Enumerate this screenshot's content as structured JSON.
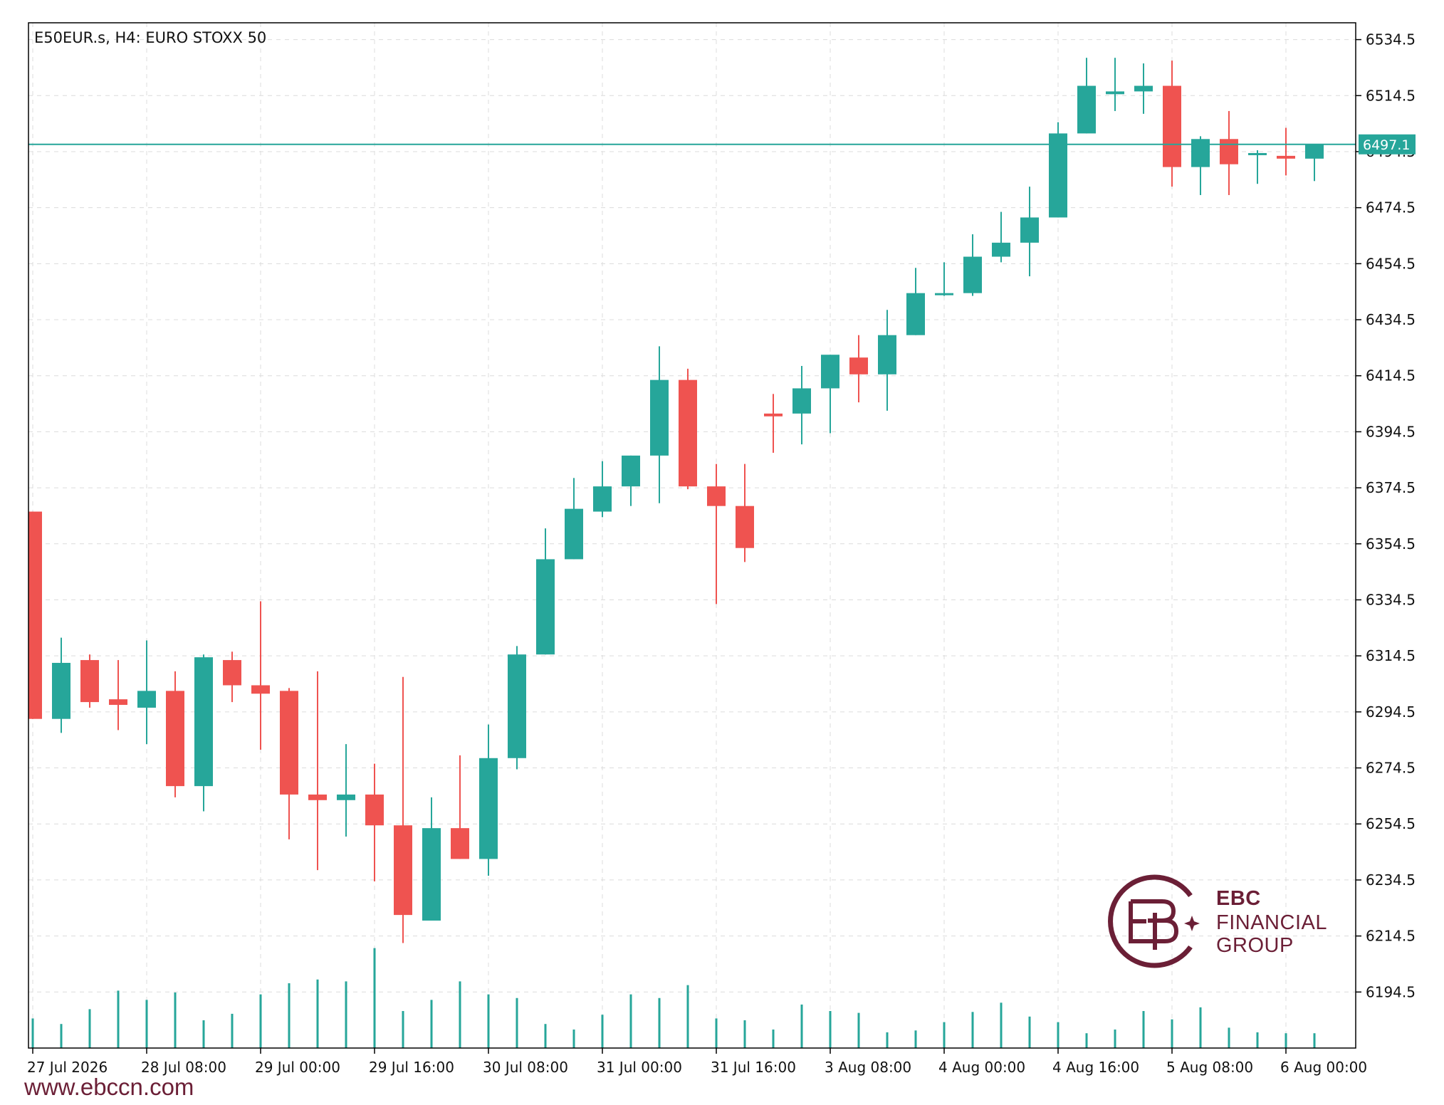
{
  "header": {
    "title": "E50EUR.s, H4:  EURO STOXX 50"
  },
  "price_tag": {
    "value": "6497.1",
    "color": "#26a69a"
  },
  "watermark": {
    "brand": "EBC",
    "line2": "FINANCIAL",
    "line3": "GROUP",
    "color": "#6b1f36"
  },
  "footer": {
    "website": "www.ebccn.com"
  },
  "colors": {
    "bull": "#26a69a",
    "bear": "#ef5350",
    "grid": "#dcdcdc",
    "axis": "#000000",
    "volume": "#26a69a"
  },
  "chart_data": {
    "type": "candlestick",
    "symbol": "E50EUR.s",
    "timeframe": "H4",
    "instrument": "EURO STOXX 50",
    "ylim": [
      6174.5,
      6540.5
    ],
    "y_ticks": [
      6534.5,
      6514.5,
      6494.5,
      6474.5,
      6454.5,
      6434.5,
      6414.5,
      6394.5,
      6374.5,
      6354.5,
      6334.5,
      6314.5,
      6294.5,
      6274.5,
      6254.5,
      6234.5,
      6214.5,
      6194.5
    ],
    "y_tick_labels": [
      "6534.5",
      "6514.5",
      "6494.5",
      "6474.5",
      "6454.5",
      "6434.5",
      "6414.5",
      "6394.5",
      "6374.5",
      "6354.5",
      "6334.5",
      "6314.5",
      "6294.5",
      "6274.5",
      "6254.5",
      "6234.5",
      "6214.5",
      "6194.5"
    ],
    "x_tick_labels": [
      {
        "index": 0,
        "label": "27 Jul 2026"
      },
      {
        "index": 4,
        "label": "28 Jul 08:00"
      },
      {
        "index": 8,
        "label": "29 Jul 00:00"
      },
      {
        "index": 12,
        "label": "29 Jul 16:00"
      },
      {
        "index": 16,
        "label": "30 Jul 08:00"
      },
      {
        "index": 20,
        "label": "31 Jul 00:00"
      },
      {
        "index": 24,
        "label": "31 Jul 16:00"
      },
      {
        "index": 28,
        "label": "3 Aug 08:00"
      },
      {
        "index": 32,
        "label": "4 Aug 00:00"
      },
      {
        "index": 36,
        "label": "4 Aug 16:00"
      },
      {
        "index": 40,
        "label": "5 Aug 08:00"
      },
      {
        "index": 44,
        "label": "6 Aug 00:00"
      }
    ],
    "current_price": 6497.1,
    "candles": [
      {
        "o": 6366,
        "h": 6366,
        "l": 6292,
        "c": 6292
      },
      {
        "o": 6292,
        "h": 6321,
        "l": 6287,
        "c": 6312
      },
      {
        "o": 6313,
        "h": 6315,
        "l": 6296,
        "c": 6298
      },
      {
        "o": 6299,
        "h": 6313,
        "l": 6288,
        "c": 6297
      },
      {
        "o": 6296,
        "h": 6320,
        "l": 6283,
        "c": 6302
      },
      {
        "o": 6302,
        "h": 6309,
        "l": 6264,
        "c": 6268
      },
      {
        "o": 6268,
        "h": 6315,
        "l": 6259,
        "c": 6314
      },
      {
        "o": 6313,
        "h": 6316,
        "l": 6298,
        "c": 6304
      },
      {
        "o": 6304,
        "h": 6334,
        "l": 6281,
        "c": 6301
      },
      {
        "o": 6302,
        "h": 6303,
        "l": 6249,
        "c": 6265
      },
      {
        "o": 6265,
        "h": 6309,
        "l": 6238,
        "c": 6263
      },
      {
        "o": 6263,
        "h": 6283,
        "l": 6250,
        "c": 6265
      },
      {
        "o": 6265,
        "h": 6276,
        "l": 6234,
        "c": 6254
      },
      {
        "o": 6254,
        "h": 6307,
        "l": 6212,
        "c": 6222
      },
      {
        "o": 6220,
        "h": 6264,
        "l": 6220,
        "c": 6253
      },
      {
        "o": 6253,
        "h": 6279,
        "l": 6242,
        "c": 6242
      },
      {
        "o": 6242,
        "h": 6290,
        "l": 6236,
        "c": 6278
      },
      {
        "o": 6278,
        "h": 6318,
        "l": 6274,
        "c": 6315
      },
      {
        "o": 6315,
        "h": 6360,
        "l": 6315,
        "c": 6349
      },
      {
        "o": 6349,
        "h": 6378,
        "l": 6349,
        "c": 6367
      },
      {
        "o": 6366,
        "h": 6384,
        "l": 6364,
        "c": 6375
      },
      {
        "o": 6375,
        "h": 6386,
        "l": 6368,
        "c": 6386
      },
      {
        "o": 6386,
        "h": 6425,
        "l": 6369,
        "c": 6413
      },
      {
        "o": 6413,
        "h": 6417,
        "l": 6374,
        "c": 6375
      },
      {
        "o": 6375,
        "h": 6383,
        "l": 6333,
        "c": 6368
      },
      {
        "o": 6368,
        "h": 6383,
        "l": 6348,
        "c": 6353
      },
      {
        "o": 6401,
        "h": 6408,
        "l": 6387,
        "c": 6400
      },
      {
        "o": 6401,
        "h": 6418,
        "l": 6390,
        "c": 6410
      },
      {
        "o": 6410,
        "h": 6422,
        "l": 6394,
        "c": 6422
      },
      {
        "o": 6421,
        "h": 6429,
        "l": 6405,
        "c": 6415
      },
      {
        "o": 6415,
        "h": 6438,
        "l": 6402,
        "c": 6429
      },
      {
        "o": 6429,
        "h": 6453,
        "l": 6429,
        "c": 6444
      },
      {
        "o": 6444,
        "h": 6455,
        "l": 6443,
        "c": 6444
      },
      {
        "o": 6444,
        "h": 6465,
        "l": 6443,
        "c": 6457
      },
      {
        "o": 6457,
        "h": 6473,
        "l": 6455,
        "c": 6462
      },
      {
        "o": 6462,
        "h": 6482,
        "l": 6450,
        "c": 6471
      },
      {
        "o": 6471,
        "h": 6505,
        "l": 6471,
        "c": 6501
      },
      {
        "o": 6501,
        "h": 6528,
        "l": 6501,
        "c": 6518
      },
      {
        "o": 6515,
        "h": 6528,
        "l": 6509,
        "c": 6516
      },
      {
        "o": 6516,
        "h": 6526,
        "l": 6508,
        "c": 6518
      },
      {
        "o": 6518,
        "h": 6527,
        "l": 6482,
        "c": 6489
      },
      {
        "o": 6489,
        "h": 6500,
        "l": 6479,
        "c": 6499
      },
      {
        "o": 6499,
        "h": 6509,
        "l": 6479,
        "c": 6490
      },
      {
        "o": 6494,
        "h": 6495,
        "l": 6483,
        "c": 6494
      },
      {
        "o": 6493,
        "h": 6503,
        "l": 6486,
        "c": 6492
      },
      {
        "o": 6492,
        "h": 6497,
        "l": 6484,
        "c": 6497
      }
    ],
    "volume": [
      32,
      26,
      42,
      62,
      52,
      60,
      30,
      37,
      58,
      70,
      74,
      72,
      108,
      40,
      52,
      72,
      58,
      54,
      26,
      20,
      36,
      58,
      54,
      68,
      32,
      30,
      20,
      47,
      40,
      38,
      17,
      19,
      28,
      39,
      49,
      34,
      28,
      16,
      20,
      40,
      31,
      44,
      22,
      17,
      16,
      16
    ]
  }
}
